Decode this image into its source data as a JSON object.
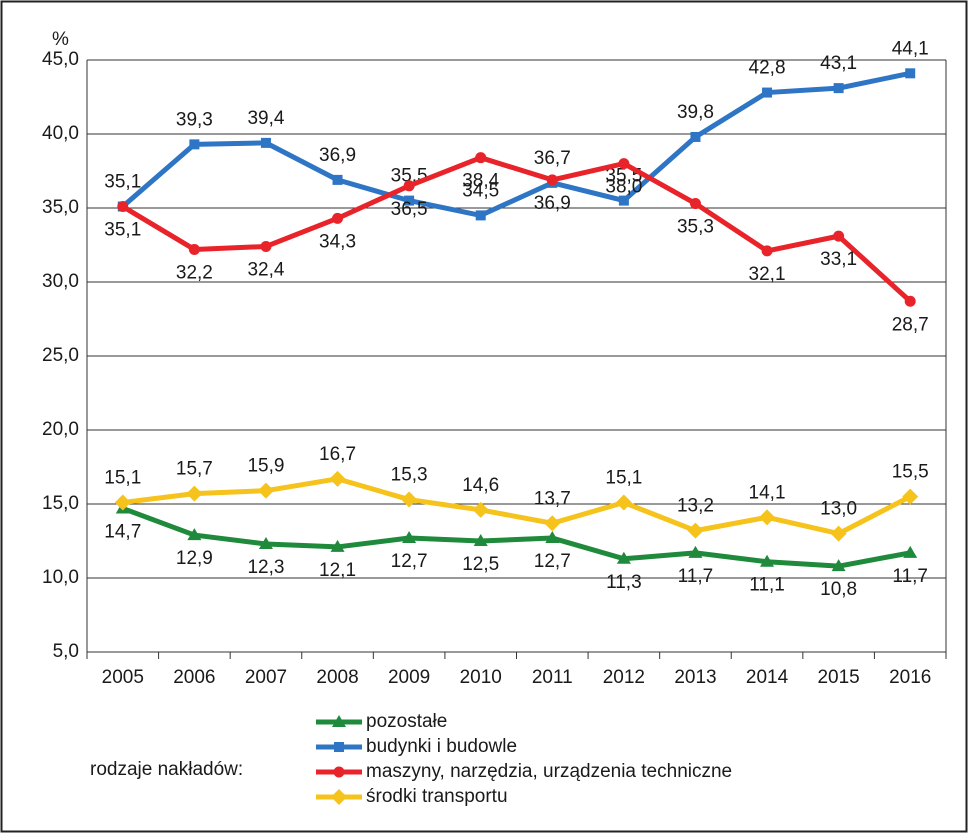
{
  "chart_data": {
    "type": "line",
    "y_label": "%",
    "legend_title": "rodzaje nakładów:",
    "legend": "bottom",
    "grid": true,
    "categories": [
      "2005",
      "2006",
      "2007",
      "2008",
      "2009",
      "2010",
      "2011",
      "2012",
      "2013",
      "2014",
      "2015",
      "2016"
    ],
    "ylim": [
      5,
      45
    ],
    "yticks": [
      {
        "value": 5,
        "label": "5,0"
      },
      {
        "value": 10,
        "label": "10,0"
      },
      {
        "value": 15,
        "label": "15,0"
      },
      {
        "value": 20,
        "label": "20,0"
      },
      {
        "value": 25,
        "label": "25,0"
      },
      {
        "value": 30,
        "label": "30,0"
      },
      {
        "value": 35,
        "label": "35,0"
      },
      {
        "value": 40,
        "label": "40,0"
      },
      {
        "value": 45,
        "label": "45,0"
      }
    ],
    "series": [
      {
        "name": "pozostałe",
        "color": "#1f8a3b",
        "marker": "triangle",
        "values": [
          14.7,
          12.9,
          12.3,
          12.1,
          12.7,
          12.5,
          12.7,
          11.3,
          11.7,
          11.1,
          10.8,
          11.7
        ],
        "value_labels": [
          "14,7",
          "12,9",
          "12,3",
          "12,1",
          "12,7",
          "12,5",
          "12,7",
          "11,3",
          "11,7",
          "11,1",
          "10,8",
          "11,7"
        ]
      },
      {
        "name": "budynki i budowle",
        "color": "#2e75c6",
        "marker": "square",
        "values": [
          35.1,
          39.3,
          39.4,
          36.9,
          35.5,
          34.5,
          36.7,
          35.5,
          39.8,
          42.8,
          43.1,
          44.1
        ],
        "value_labels": [
          "35,1",
          "39,3",
          "39,4",
          "36,9",
          "35,5",
          "34,5",
          "36,7",
          "35,5",
          "39,8",
          "42,8",
          "43,1",
          "44,1"
        ]
      },
      {
        "name": "maszyny, narzędzia, urządzenia techniczne",
        "color": "#e8232a",
        "marker": "circle",
        "values": [
          35.1,
          32.2,
          32.4,
          34.3,
          36.5,
          38.4,
          36.9,
          38.0,
          35.3,
          32.1,
          33.1,
          28.7
        ],
        "value_labels": [
          "35,1",
          "32,2",
          "32,4",
          "34,3",
          "36,5",
          "38,4",
          "36,9",
          "38,0",
          "35,3",
          "32,1",
          "33,1",
          "28,7"
        ]
      },
      {
        "name": "środki transportu",
        "color": "#f5c31c",
        "marker": "diamond",
        "values": [
          15.1,
          15.7,
          15.9,
          16.7,
          15.3,
          14.6,
          13.7,
          15.1,
          13.2,
          14.1,
          13.0,
          15.5
        ],
        "value_labels": [
          "15,1",
          "15,7",
          "15,9",
          "16,7",
          "15,3",
          "14,6",
          "13,7",
          "15,1",
          "13,2",
          "14,1",
          "13,0",
          "15,5"
        ]
      }
    ]
  }
}
